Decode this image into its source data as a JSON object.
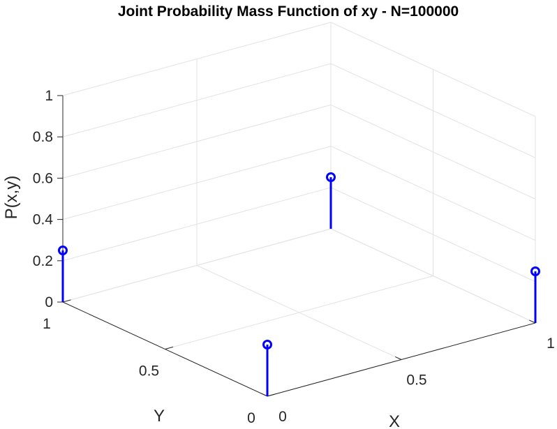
{
  "chart_data": {
    "type": "stem3",
    "title": "Joint Probability Mass Function of xy - N=100000",
    "xlabel": "X",
    "ylabel": "Y",
    "zlabel": "P(x,y)",
    "xlim": [
      0,
      1
    ],
    "ylim": [
      0,
      1
    ],
    "zlim": [
      0,
      1
    ],
    "xticks": [
      "0",
      "0.5",
      "1"
    ],
    "yticks": [
      "0",
      "0.5",
      "1"
    ],
    "zticks": [
      "0",
      "0.2",
      "0.4",
      "0.6",
      "0.8",
      "1"
    ],
    "grid": true,
    "points": [
      {
        "x": 0,
        "y": 0,
        "z": 0.25
      },
      {
        "x": 0,
        "y": 1,
        "z": 0.25
      },
      {
        "x": 1,
        "y": 0,
        "z": 0.25
      },
      {
        "x": 1,
        "y": 1,
        "z": 0.25
      }
    ],
    "colors": {
      "stem": "#0000ff",
      "axis": "#262626",
      "grid": "#e2e2e2"
    }
  }
}
